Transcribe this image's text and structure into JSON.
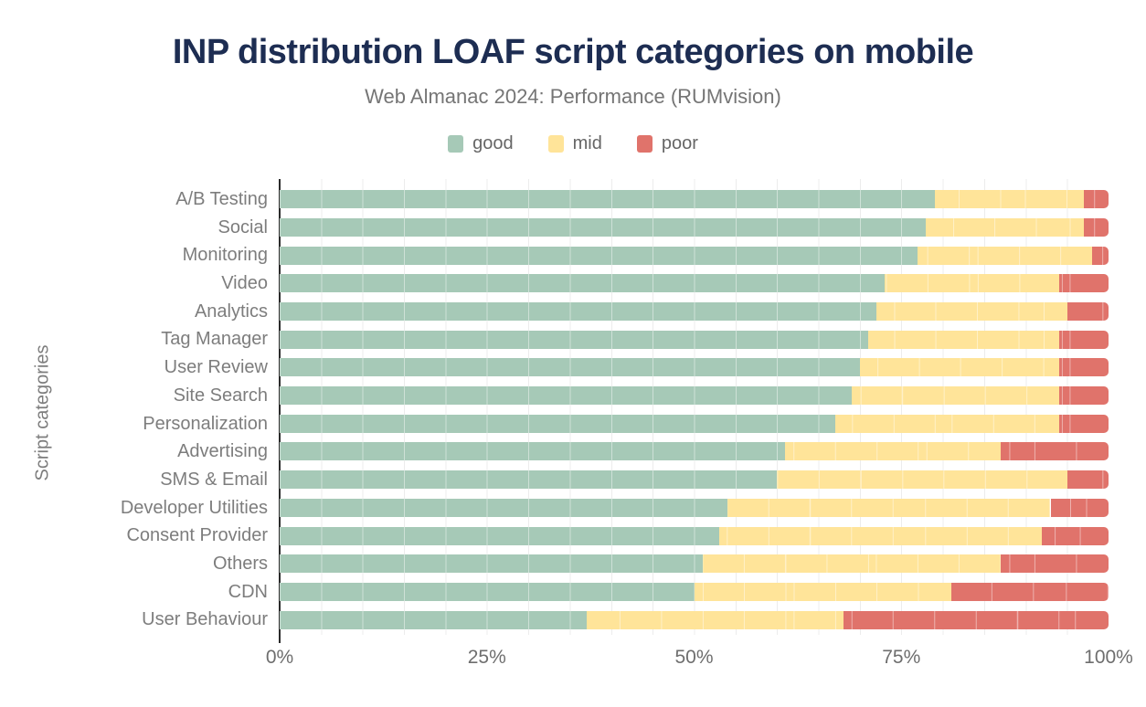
{
  "header": {
    "title": "INP distribution LOAF script categories on mobile",
    "subtitle": "Web Almanac 2024: Performance (RUMvision)"
  },
  "legend": [
    {
      "label": "good",
      "color": "#a6c9b7"
    },
    {
      "label": "mid",
      "color": "#ffe499"
    },
    {
      "label": "poor",
      "color": "#e0736b"
    }
  ],
  "colors": {
    "title": "#1d2d52",
    "subtitle": "#757575",
    "axis_line": "#2b2b2b",
    "gridline": "#ececec",
    "tick_text": "#6e6e6e",
    "category_text": "#7d7d7d"
  },
  "chart_data": {
    "type": "bar",
    "orientation": "horizontal",
    "stacked": true,
    "title": "INP distribution LOAF script categories on mobile",
    "subtitle": "Web Almanac 2024: Performance (RUMvision)",
    "xlabel": "",
    "ylabel": "Script categories",
    "xlim": [
      0,
      100
    ],
    "x_tick_labels": [
      "0%",
      "25%",
      "50%",
      "75%",
      "100%"
    ],
    "x_tick_values": [
      0,
      25,
      50,
      75,
      100
    ],
    "grid": "vertical minor gridlines every 5%",
    "legend_position": "top center",
    "units": "percent",
    "categories": [
      "A/B Testing",
      "Social",
      "Monitoring",
      "Video",
      "Analytics",
      "Tag Manager",
      "User Review",
      "Site Search",
      "Personalization",
      "Advertising",
      "SMS & Email",
      "Developer Utilities",
      "Consent Provider",
      "Others",
      "CDN",
      "User Behaviour"
    ],
    "series": [
      {
        "name": "good",
        "color": "#a6c9b7",
        "values": [
          79,
          78,
          77,
          73,
          72,
          71,
          70,
          69,
          67,
          61,
          60,
          54,
          53,
          51,
          50,
          37
        ]
      },
      {
        "name": "mid",
        "color": "#ffe499",
        "values": [
          18,
          19,
          21,
          21,
          23,
          23,
          24,
          25,
          27,
          26,
          35,
          39,
          39,
          36,
          31,
          31
        ]
      },
      {
        "name": "poor",
        "color": "#e0736b",
        "values": [
          3,
          3,
          2,
          6,
          5,
          6,
          6,
          6,
          6,
          13,
          5,
          7,
          8,
          13,
          19,
          32
        ]
      }
    ]
  }
}
